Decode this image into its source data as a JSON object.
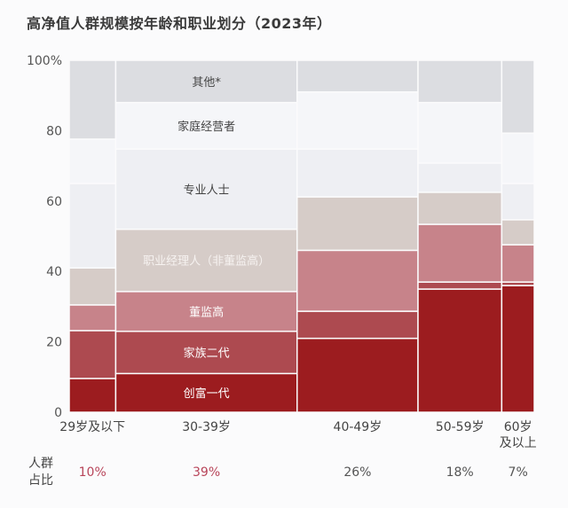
{
  "chart_data": {
    "type": "marimekko",
    "title": "高净值人群规模按年龄和职业划分（2023年）",
    "ylim": [
      0,
      100
    ],
    "y_ticks": [
      "0",
      "20",
      "40",
      "60",
      "80",
      "100%"
    ],
    "y_tick_values": [
      0,
      20,
      40,
      60,
      80,
      100
    ],
    "categories": [
      "29岁及以下",
      "30-39岁",
      "40-49岁",
      "50-59岁",
      "60岁及以上"
    ],
    "category_lines": [
      [
        "29岁及以下"
      ],
      [
        "30-39岁"
      ],
      [
        "40-49岁"
      ],
      [
        "50-59岁"
      ],
      [
        "60岁",
        "及以上"
      ]
    ],
    "share_label": [
      "人群",
      "占比"
    ],
    "shares": [
      10,
      39,
      26,
      18,
      7
    ],
    "share_labels": [
      "10%",
      "39%",
      "26%",
      "18%",
      "7%"
    ],
    "share_label_colors": [
      "#b8455a",
      "#b8455a",
      "#555555",
      "#555555",
      "#555555"
    ],
    "series": [
      {
        "name": "创富一代",
        "color": "#9c1c1f",
        "text_color": "#ffffff",
        "values": [
          9.6,
          11,
          21,
          35,
          36
        ]
      },
      {
        "name": "家族二代",
        "color": "#ad4a50",
        "text_color": "#ffffff",
        "values": [
          13.6,
          12,
          7.7,
          2,
          1
        ]
      },
      {
        "name": "董监高",
        "color": "#c7838a",
        "text_color": "#ffffff",
        "values": [
          7.3,
          11.3,
          17.3,
          16.4,
          10.6
        ]
      },
      {
        "name": "职业经理人（非董监高）",
        "color": "#d6ccc8",
        "text_color": "#f6f2f0",
        "values": [
          10.5,
          17.7,
          15.2,
          9.1,
          7.1
        ]
      },
      {
        "name": "专业人士",
        "color": "#eeeff3",
        "text_color": "#444444",
        "values": [
          24,
          22.8,
          13.6,
          8.3,
          10.3
        ]
      },
      {
        "name": "家庭经营者",
        "color": "#f5f6f9",
        "text_color": "#444444",
        "values": [
          12.6,
          13.2,
          16.2,
          17.2,
          14.3
        ]
      },
      {
        "name": "其他*",
        "color": "#dcdde1",
        "text_color": "#444444",
        "values": [
          22.4,
          12,
          9,
          12,
          20.7
        ]
      }
    ],
    "labelled_category": "30-39岁",
    "grid": false,
    "legend": "none"
  }
}
